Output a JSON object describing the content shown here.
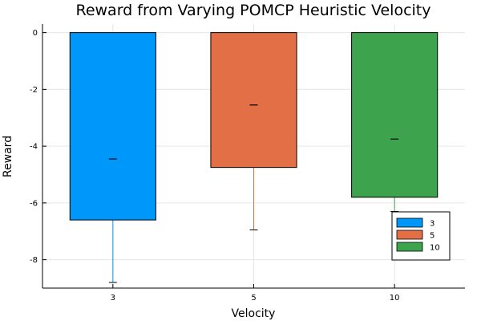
{
  "chart_data": {
    "type": "box",
    "title": "Reward from Varying POMCP Heuristic Velocity",
    "xlabel": "Velocity",
    "ylabel": "Reward",
    "categories": [
      "3",
      "5",
      "10"
    ],
    "ylim": [
      -9,
      0.3
    ],
    "yticks": [
      0,
      -2,
      -4,
      -6,
      -8
    ],
    "yticklabels": [
      "0",
      "-2",
      "-4",
      "-6",
      "-8"
    ],
    "grid": true,
    "legend_position": "bottom-right",
    "series": [
      {
        "name": "3",
        "color": "#0097fa",
        "q1": -6.6,
        "q3": 0,
        "median": -4.45,
        "whisker_low": -8.8,
        "whisker_high": 0
      },
      {
        "name": "5",
        "color": "#e26f46",
        "q1": -4.75,
        "q3": 0,
        "median": -2.55,
        "whisker_low": -6.95,
        "whisker_high": 0
      },
      {
        "name": "10",
        "color": "#3da44d",
        "q1": -5.8,
        "q3": 0,
        "median": -3.75,
        "whisker_low": -6.3,
        "whisker_high": 0
      }
    ]
  }
}
